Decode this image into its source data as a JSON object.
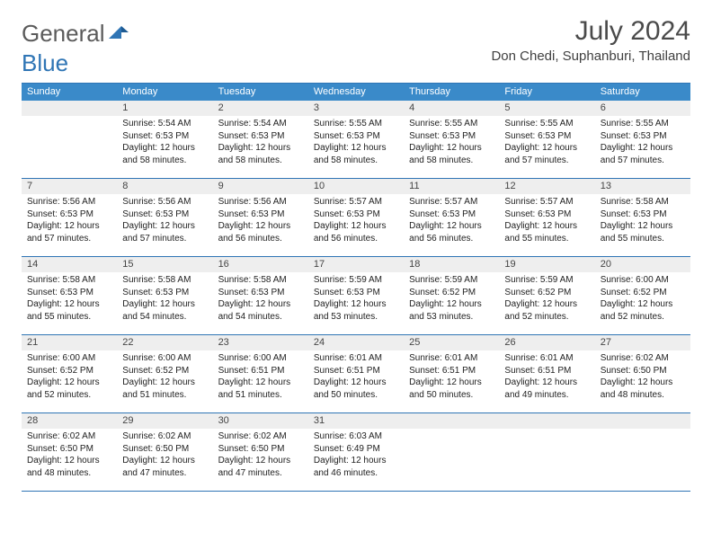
{
  "brand": {
    "part1": "General",
    "part2": "Blue"
  },
  "title": "July 2024",
  "location": "Don Chedi, Suphanburi, Thailand",
  "colors": {
    "accent": "#2f75b5",
    "header_bg": "#3a8ac9",
    "daynum_bg": "#eeeeee",
    "text_dark": "#222222",
    "text_mid": "#4a4a4a",
    "bg": "#ffffff"
  },
  "dows": [
    "Sunday",
    "Monday",
    "Tuesday",
    "Wednesday",
    "Thursday",
    "Friday",
    "Saturday"
  ],
  "weeks": [
    [
      {
        "n": "",
        "sr": "",
        "ss": "",
        "dl": "",
        "empty": true
      },
      {
        "n": "1",
        "sr": "Sunrise: 5:54 AM",
        "ss": "Sunset: 6:53 PM",
        "dl": "Daylight: 12 hours and 58 minutes."
      },
      {
        "n": "2",
        "sr": "Sunrise: 5:54 AM",
        "ss": "Sunset: 6:53 PM",
        "dl": "Daylight: 12 hours and 58 minutes."
      },
      {
        "n": "3",
        "sr": "Sunrise: 5:55 AM",
        "ss": "Sunset: 6:53 PM",
        "dl": "Daylight: 12 hours and 58 minutes."
      },
      {
        "n": "4",
        "sr": "Sunrise: 5:55 AM",
        "ss": "Sunset: 6:53 PM",
        "dl": "Daylight: 12 hours and 58 minutes."
      },
      {
        "n": "5",
        "sr": "Sunrise: 5:55 AM",
        "ss": "Sunset: 6:53 PM",
        "dl": "Daylight: 12 hours and 57 minutes."
      },
      {
        "n": "6",
        "sr": "Sunrise: 5:55 AM",
        "ss": "Sunset: 6:53 PM",
        "dl": "Daylight: 12 hours and 57 minutes."
      }
    ],
    [
      {
        "n": "7",
        "sr": "Sunrise: 5:56 AM",
        "ss": "Sunset: 6:53 PM",
        "dl": "Daylight: 12 hours and 57 minutes."
      },
      {
        "n": "8",
        "sr": "Sunrise: 5:56 AM",
        "ss": "Sunset: 6:53 PM",
        "dl": "Daylight: 12 hours and 57 minutes."
      },
      {
        "n": "9",
        "sr": "Sunrise: 5:56 AM",
        "ss": "Sunset: 6:53 PM",
        "dl": "Daylight: 12 hours and 56 minutes."
      },
      {
        "n": "10",
        "sr": "Sunrise: 5:57 AM",
        "ss": "Sunset: 6:53 PM",
        "dl": "Daylight: 12 hours and 56 minutes."
      },
      {
        "n": "11",
        "sr": "Sunrise: 5:57 AM",
        "ss": "Sunset: 6:53 PM",
        "dl": "Daylight: 12 hours and 56 minutes."
      },
      {
        "n": "12",
        "sr": "Sunrise: 5:57 AM",
        "ss": "Sunset: 6:53 PM",
        "dl": "Daylight: 12 hours and 55 minutes."
      },
      {
        "n": "13",
        "sr": "Sunrise: 5:58 AM",
        "ss": "Sunset: 6:53 PM",
        "dl": "Daylight: 12 hours and 55 minutes."
      }
    ],
    [
      {
        "n": "14",
        "sr": "Sunrise: 5:58 AM",
        "ss": "Sunset: 6:53 PM",
        "dl": "Daylight: 12 hours and 55 minutes."
      },
      {
        "n": "15",
        "sr": "Sunrise: 5:58 AM",
        "ss": "Sunset: 6:53 PM",
        "dl": "Daylight: 12 hours and 54 minutes."
      },
      {
        "n": "16",
        "sr": "Sunrise: 5:58 AM",
        "ss": "Sunset: 6:53 PM",
        "dl": "Daylight: 12 hours and 54 minutes."
      },
      {
        "n": "17",
        "sr": "Sunrise: 5:59 AM",
        "ss": "Sunset: 6:53 PM",
        "dl": "Daylight: 12 hours and 53 minutes."
      },
      {
        "n": "18",
        "sr": "Sunrise: 5:59 AM",
        "ss": "Sunset: 6:52 PM",
        "dl": "Daylight: 12 hours and 53 minutes."
      },
      {
        "n": "19",
        "sr": "Sunrise: 5:59 AM",
        "ss": "Sunset: 6:52 PM",
        "dl": "Daylight: 12 hours and 52 minutes."
      },
      {
        "n": "20",
        "sr": "Sunrise: 6:00 AM",
        "ss": "Sunset: 6:52 PM",
        "dl": "Daylight: 12 hours and 52 minutes."
      }
    ],
    [
      {
        "n": "21",
        "sr": "Sunrise: 6:00 AM",
        "ss": "Sunset: 6:52 PM",
        "dl": "Daylight: 12 hours and 52 minutes."
      },
      {
        "n": "22",
        "sr": "Sunrise: 6:00 AM",
        "ss": "Sunset: 6:52 PM",
        "dl": "Daylight: 12 hours and 51 minutes."
      },
      {
        "n": "23",
        "sr": "Sunrise: 6:00 AM",
        "ss": "Sunset: 6:51 PM",
        "dl": "Daylight: 12 hours and 51 minutes."
      },
      {
        "n": "24",
        "sr": "Sunrise: 6:01 AM",
        "ss": "Sunset: 6:51 PM",
        "dl": "Daylight: 12 hours and 50 minutes."
      },
      {
        "n": "25",
        "sr": "Sunrise: 6:01 AM",
        "ss": "Sunset: 6:51 PM",
        "dl": "Daylight: 12 hours and 50 minutes."
      },
      {
        "n": "26",
        "sr": "Sunrise: 6:01 AM",
        "ss": "Sunset: 6:51 PM",
        "dl": "Daylight: 12 hours and 49 minutes."
      },
      {
        "n": "27",
        "sr": "Sunrise: 6:02 AM",
        "ss": "Sunset: 6:50 PM",
        "dl": "Daylight: 12 hours and 48 minutes."
      }
    ],
    [
      {
        "n": "28",
        "sr": "Sunrise: 6:02 AM",
        "ss": "Sunset: 6:50 PM",
        "dl": "Daylight: 12 hours and 48 minutes."
      },
      {
        "n": "29",
        "sr": "Sunrise: 6:02 AM",
        "ss": "Sunset: 6:50 PM",
        "dl": "Daylight: 12 hours and 47 minutes."
      },
      {
        "n": "30",
        "sr": "Sunrise: 6:02 AM",
        "ss": "Sunset: 6:50 PM",
        "dl": "Daylight: 12 hours and 47 minutes."
      },
      {
        "n": "31",
        "sr": "Sunrise: 6:03 AM",
        "ss": "Sunset: 6:49 PM",
        "dl": "Daylight: 12 hours and 46 minutes."
      },
      {
        "n": "",
        "sr": "",
        "ss": "",
        "dl": "",
        "empty": true
      },
      {
        "n": "",
        "sr": "",
        "ss": "",
        "dl": "",
        "empty": true
      },
      {
        "n": "",
        "sr": "",
        "ss": "",
        "dl": "",
        "empty": true
      }
    ]
  ]
}
